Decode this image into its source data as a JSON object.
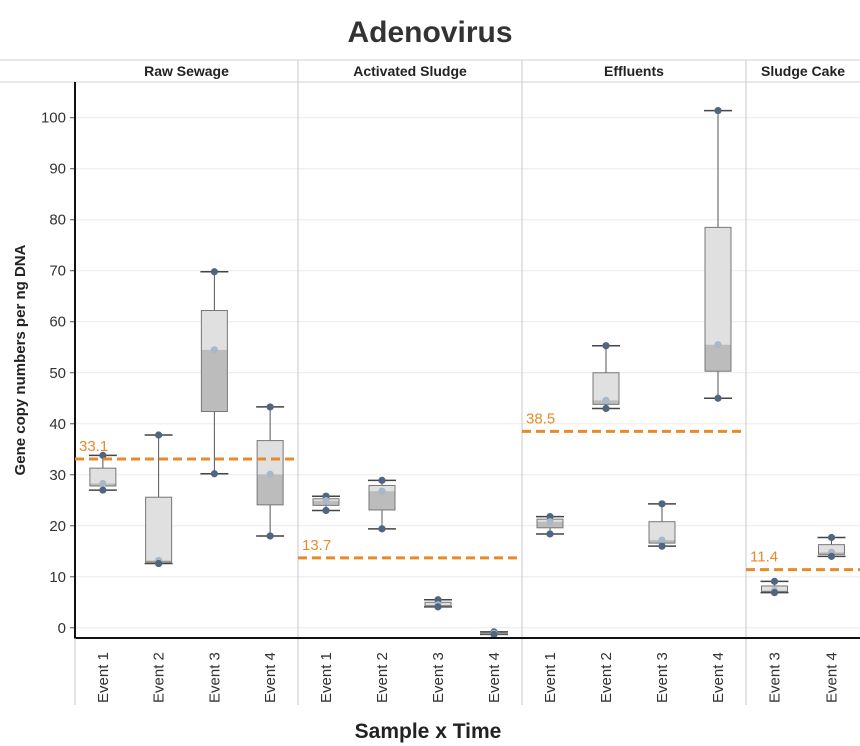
{
  "chart_data": {
    "type": "box",
    "title": "Adenovirus",
    "xlabel": "Sample x Time",
    "ylabel": "Gene copy numbers per ng DNA",
    "ylim": [
      -2,
      107
    ],
    "yticks": [
      0,
      10,
      20,
      30,
      40,
      50,
      60,
      70,
      80,
      90,
      100
    ],
    "grid": true,
    "colors": {
      "box_upper": "#e0e0e0",
      "box_lower": "#bcbcbc",
      "point": "#4f6580",
      "point_light": "#a9b8c8",
      "reference": "#e8892a",
      "panel_divider": "#c8c8c8",
      "gridline": "#ebebeb"
    },
    "panels": [
      {
        "name": "Raw Sewage",
        "reference": 33.1,
        "categories": [
          {
            "label": "Event 1",
            "min": 27.0,
            "q1": 27.8,
            "median": 28.3,
            "q3": 31.3,
            "max": 33.8,
            "points": [
              33.8,
              28.3,
              27.0
            ]
          },
          {
            "label": "Event 2",
            "min": 12.6,
            "q1": 12.9,
            "median": 13.2,
            "q3": 25.6,
            "max": 37.8,
            "points": [
              37.8,
              13.2,
              12.6
            ]
          },
          {
            "label": "Event 3",
            "min": 30.2,
            "q1": 42.4,
            "median": 54.5,
            "q3": 62.2,
            "max": 69.8,
            "points": [
              69.8,
              54.5,
              30.2
            ]
          },
          {
            "label": "Event 4",
            "min": 18.0,
            "q1": 24.1,
            "median": 30.1,
            "q3": 36.7,
            "max": 43.3,
            "points": [
              43.3,
              30.1,
              18.0
            ]
          }
        ]
      },
      {
        "name": "Activated Sludge",
        "reference": 13.7,
        "categories": [
          {
            "label": "Event 1",
            "min": 23.0,
            "q1": 24.0,
            "median": 24.9,
            "q3": 25.3,
            "max": 25.8,
            "points": [
              25.8,
              24.9,
              23.0
            ]
          },
          {
            "label": "Event 2",
            "min": 19.4,
            "q1": 23.1,
            "median": 26.8,
            "q3": 27.9,
            "max": 28.9,
            "points": [
              28.9,
              26.8,
              19.4
            ]
          },
          {
            "label": "Event 3",
            "min": 4.1,
            "q1": 4.3,
            "median": 4.5,
            "q3": 5.0,
            "max": 5.5,
            "points": [
              5.5,
              4.5,
              4.1
            ]
          },
          {
            "label": "Event 4",
            "min": -1.3,
            "q1": -1.2,
            "median": -1.1,
            "q3": -0.95,
            "max": -0.8,
            "points": [
              -0.8,
              -1.1,
              -1.3
            ]
          }
        ]
      },
      {
        "name": "Effluents",
        "reference": 38.5,
        "categories": [
          {
            "label": "Event 1",
            "min": 18.4,
            "q1": 19.6,
            "median": 20.8,
            "q3": 21.3,
            "max": 21.8,
            "points": [
              21.8,
              20.8,
              18.4
            ]
          },
          {
            "label": "Event 2",
            "min": 43.0,
            "q1": 43.8,
            "median": 44.6,
            "q3": 50.0,
            "max": 55.3,
            "points": [
              55.3,
              44.6,
              43.0
            ]
          },
          {
            "label": "Event 3",
            "min": 16.0,
            "q1": 16.6,
            "median": 17.2,
            "q3": 20.8,
            "max": 24.3,
            "points": [
              24.3,
              17.2,
              16.0
            ]
          },
          {
            "label": "Event 4",
            "min": 45.0,
            "q1": 50.3,
            "median": 55.5,
            "q3": 78.5,
            "max": 101.4,
            "points": [
              101.4,
              55.5,
              45.0
            ]
          }
        ]
      },
      {
        "name": "Sludge Cake",
        "reference": 11.4,
        "categories": [
          {
            "label": "Event 3",
            "min": 6.9,
            "q1": 7.1,
            "median": 7.3,
            "q3": 8.2,
            "max": 9.1,
            "points": [
              9.1,
              7.3,
              6.9
            ]
          },
          {
            "label": "Event 4",
            "min": 14.0,
            "q1": 14.4,
            "median": 14.8,
            "q3": 16.3,
            "max": 17.7,
            "points": [
              17.7,
              14.8,
              14.0
            ]
          }
        ]
      }
    ]
  }
}
